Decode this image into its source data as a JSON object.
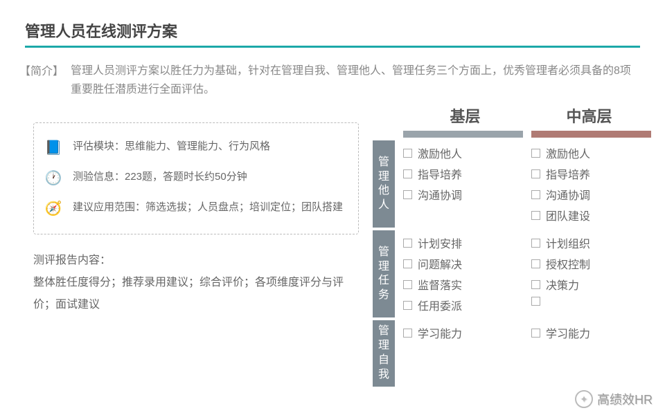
{
  "title": "管理人员在线测评方案",
  "intro": {
    "label": "【简介】",
    "text": "管理人员测评方案以胜任力为基础，针对在管理自我、管理他人、管理任务三个方面上，优秀管理者必须具备的8项重要胜任潜质进行全面评估。"
  },
  "info_box": {
    "items": [
      {
        "icon": "book-icon",
        "text": "评估模块：思维能力、管理能力、行为风格"
      },
      {
        "icon": "clock-icon",
        "text": "测验信息：223题，答题时长约50分钟"
      },
      {
        "icon": "compass-icon",
        "text": "建议应用范围：筛选选拔；人员盘点；培训定位；团队搭建"
      }
    ]
  },
  "report": {
    "heading": "测评报告内容：",
    "body": "整体胜任度得分；推荐录用建议；综合评价；各项维度评分与评价；面试建议"
  },
  "matrix": {
    "columns": [
      {
        "label": "基层",
        "bar_color": "#9aa4ab"
      },
      {
        "label": "中高层",
        "bar_color": "#b07b74"
      }
    ],
    "sections": [
      {
        "label": "管理他人",
        "cols": [
          [
            "激励他人",
            "指导培养",
            "沟通协调"
          ],
          [
            "激励他人",
            "指导培养",
            "沟通协调",
            "团队建设"
          ]
        ]
      },
      {
        "label": "管理任务",
        "cols": [
          [
            "计划安排",
            "问题解决",
            "监督落实",
            "任用委派"
          ],
          [
            "计划组织",
            "授权控制",
            "决策力",
            ""
          ]
        ]
      },
      {
        "label": "管理自我",
        "cols": [
          [
            "学习能力"
          ],
          [
            "学习能力"
          ]
        ]
      }
    ],
    "section_label_bg": "#7d8a93"
  },
  "watermark": {
    "text": "高绩效HR"
  },
  "colors": {
    "accent": "#1ca8a8",
    "text_muted": "#888888",
    "text_body": "#666666",
    "box_border": "#bbbbbb"
  }
}
